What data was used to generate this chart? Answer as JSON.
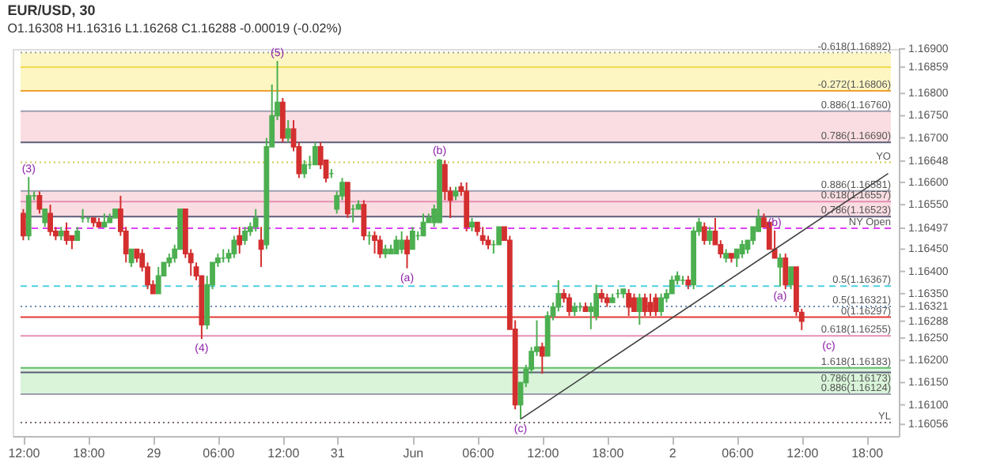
{
  "chart_data": {
    "type": "candlestick",
    "title": "EUR/USD, 30",
    "subtitle": "O1.16308 H1.16316 L1.16268 C1.16288 -0.00019 (-0.02%)",
    "categories": [
      "12:00",
      null,
      null,
      null,
      null,
      null,
      null,
      null,
      null,
      null,
      null,
      null,
      "18:00",
      null,
      null,
      null,
      null,
      null,
      null,
      null,
      null,
      null,
      null,
      null,
      "29",
      null,
      null,
      null,
      null,
      null,
      null,
      null,
      null,
      null,
      null,
      null,
      "06:00",
      null,
      null,
      null,
      null,
      null,
      null,
      null,
      null,
      null,
      null,
      null,
      "12:00",
      null,
      null,
      null,
      null,
      null,
      null,
      null,
      null,
      null,
      "31",
      null,
      null,
      null,
      null,
      null,
      null,
      null,
      null,
      null,
      null,
      null,
      null,
      null,
      "Jun",
      null,
      null,
      null,
      null,
      null,
      null,
      null,
      null,
      null,
      null,
      null,
      "06:00",
      null,
      null,
      null,
      null,
      null,
      null,
      null,
      null,
      null,
      null,
      null,
      "12:00",
      null,
      null,
      null,
      null,
      null,
      null,
      null,
      null,
      null,
      null,
      null,
      "18:00",
      null,
      null,
      null,
      null,
      null,
      null,
      null,
      null,
      null,
      null,
      null,
      "2",
      null,
      null,
      null,
      null,
      null,
      null,
      null,
      null,
      null,
      null,
      null,
      "06:00",
      null,
      null,
      null,
      null,
      null,
      null,
      null,
      null,
      null,
      null,
      null,
      "12:00",
      null,
      null,
      null,
      null,
      null,
      null,
      null,
      null,
      null,
      null,
      null,
      "18:00",
      null,
      null,
      null,
      null
    ],
    "colors": [
      "#d32f2f",
      "#4caf50",
      "#4caf50",
      "#d32f2f",
      "#4caf50",
      "#d32f2f",
      "#d32f2f",
      "#4caf50",
      "#d32f2f",
      "#d32f2f",
      "#4caf50",
      "#4caf50",
      "#4caf50",
      "#d32f2f",
      "#d32f2f",
      "#4caf50",
      "#4caf50",
      "#4caf50",
      "#d32f2f",
      "#d32f2f",
      "#4caf50",
      "#d32f2f",
      "#d32f2f",
      "#d32f2f",
      "#d32f2f",
      "#4caf50",
      "#4caf50",
      "#4caf50",
      "#4caf50",
      "#4caf50",
      "#d32f2f",
      "#d32f2f",
      "#d32f2f",
      "#d32f2f",
      "#4caf50",
      "#4caf50",
      "#4caf50",
      "#4caf50",
      "#4caf50",
      "#4caf50",
      "#d32f2f",
      "#4caf50",
      "#4caf50",
      "#4caf50",
      "#d32f2f",
      "#4caf50",
      "#4caf50",
      "#4caf50",
      "#d32f2f",
      "#4caf50",
      "#d32f2f",
      "#d32f2f",
      "#4caf50",
      "#4caf50",
      "#4caf50",
      "#d32f2f",
      "#d32f2f",
      "#4caf50",
      "#4caf50",
      "#4caf50",
      "#d32f2f",
      "#4caf50",
      "#4caf50",
      "#d32f2f",
      "#4caf50",
      "#d32f2f",
      "#d32f2f",
      "#4caf50",
      "#4caf50",
      "#4caf50",
      "#4caf50",
      "#d32f2f",
      "#4caf50",
      "#4caf50",
      "#4caf50",
      "#4caf50",
      "#4caf50",
      "#4caf50",
      "#d32f2f",
      "#d32f2f",
      "#4caf50",
      "#d32f2f",
      "#d32f2f",
      "#4caf50",
      "#d32f2f",
      "#d32f2f",
      "#d32f2f",
      "#4caf50",
      "#4caf50",
      "#d32f2f",
      "#d32f2f",
      "#d32f2f",
      "#4caf50",
      "#4caf50",
      "#4caf50",
      "#4caf50",
      "#d32f2f",
      "#4caf50",
      "#4caf50",
      "#4caf50",
      "#d32f2f",
      "#d32f2f",
      "#4caf50",
      "#4caf50",
      "#d32f2f",
      "#4caf50",
      "#4caf50",
      "#d32f2f",
      "#d32f2f",
      "#4caf50",
      "#4caf50",
      "#4caf50",
      "#d32f2f",
      "#d32f2f",
      "#4caf50",
      "#d32f2f",
      "#d32f2f",
      "#d32f2f",
      "#4caf50",
      "#4caf50",
      "#4caf50",
      "#4caf50",
      "#4caf50",
      "#d32f2f",
      "#4caf50",
      "#4caf50",
      "#d32f2f",
      "#4caf50",
      "#d32f2f",
      "#d32f2f",
      "#4caf50",
      "#d32f2f",
      "#4caf50",
      "#4caf50",
      "#4caf50",
      "#4caf50",
      "#4caf50",
      "#d32f2f",
      "#d32f2f",
      "#d32f2f",
      "#4caf50",
      "#d32f2f",
      "#4caf50",
      "#d32f2f",
      "#d32f2f",
      null,
      null,
      null,
      null,
      null,
      null,
      null,
      null,
      null,
      null,
      null,
      null,
      null,
      null,
      null,
      null
    ],
    "ohlc": [
      [
        1.1653,
        1.1654,
        1.1647,
        1.1648
      ],
      [
        1.1648,
        1.16612,
        1.1647,
        1.1657
      ],
      [
        1.1657,
        1.1658,
        1.1656,
        1.1657
      ],
      [
        1.1657,
        1.1658,
        1.1653,
        1.1654
      ],
      [
        1.1651,
        1.1654,
        1.165,
        1.1654
      ],
      [
        1.1653,
        1.1655,
        1.1648,
        1.1649
      ],
      [
        1.1649,
        1.165,
        1.1647,
        1.1648
      ],
      [
        1.1648,
        1.165,
        1.1647,
        1.1649
      ],
      [
        1.1649,
        1.1651,
        1.1646,
        1.1647
      ],
      [
        1.1648,
        1.1648,
        1.1645,
        1.1647
      ],
      [
        1.1647,
        1.165,
        1.1647,
        1.1649
      ],
      [
        1.1652,
        1.1654,
        1.1651,
        1.1652
      ],
      [
        1.1652,
        1.1652,
        1.1651,
        1.1652
      ],
      [
        1.1652,
        1.1652,
        1.165,
        1.1651
      ],
      [
        1.1651,
        1.1652,
        1.165,
        1.165
      ],
      [
        1.165,
        1.1653,
        1.165,
        1.1651
      ],
      [
        1.1651,
        1.1653,
        1.1651,
        1.1652
      ],
      [
        1.1652,
        1.1654,
        1.1652,
        1.1654
      ],
      [
        1.1654,
        1.1657,
        1.1648,
        1.1649
      ],
      [
        1.1649,
        1.165,
        1.1642,
        1.1644
      ],
      [
        1.1642,
        1.1645,
        1.1641,
        1.1645
      ],
      [
        1.1645,
        1.1645,
        1.1642,
        1.1643
      ],
      [
        1.1644,
        1.1645,
        1.164,
        1.1641
      ],
      [
        1.1641,
        1.1642,
        1.1636,
        1.1637
      ],
      [
        1.1637,
        1.1638,
        1.1635,
        1.1635
      ],
      [
        1.1635,
        1.1641,
        1.1635,
        1.1639
      ],
      [
        1.1639,
        1.1642,
        1.1639,
        1.1642
      ],
      [
        1.1642,
        1.1644,
        1.1641,
        1.1643
      ],
      [
        1.1643,
        1.1646,
        1.1642,
        1.1645
      ],
      [
        1.1645,
        1.1654,
        1.1645,
        1.1654
      ],
      [
        1.1654,
        1.1654,
        1.1643,
        1.1644
      ],
      [
        1.1644,
        1.1645,
        1.1639,
        1.1642
      ],
      [
        1.1641,
        1.1642,
        1.1638,
        1.1639
      ],
      [
        1.1639,
        1.1639,
        1.16248,
        1.1628
      ],
      [
        1.1628,
        1.1639,
        1.1627,
        1.1637
      ],
      [
        1.1637,
        1.1642,
        1.1636,
        1.1642
      ],
      [
        1.1642,
        1.1644,
        1.1641,
        1.1643
      ],
      [
        1.1643,
        1.1645,
        1.1642,
        1.1643
      ],
      [
        1.1643,
        1.1645,
        1.1642,
        1.1644
      ],
      [
        1.1644,
        1.1648,
        1.1643,
        1.1647
      ],
      [
        1.1648,
        1.165,
        1.1644,
        1.1646
      ],
      [
        1.1647,
        1.165,
        1.1646,
        1.1649
      ],
      [
        1.1649,
        1.1651,
        1.1648,
        1.165
      ],
      [
        1.165,
        1.1654,
        1.1649,
        1.1652
      ],
      [
        1.1647,
        1.165,
        1.1641,
        1.1645
      ],
      [
        1.1646,
        1.167,
        1.1645,
        1.1668
      ],
      [
        1.1668,
        1.1682,
        1.1668,
        1.1675
      ],
      [
        1.1675,
        1.16873,
        1.1674,
        1.1678
      ],
      [
        1.1678,
        1.1679,
        1.1669,
        1.167
      ],
      [
        1.167,
        1.1674,
        1.1669,
        1.1672
      ],
      [
        1.1672,
        1.1674,
        1.1667,
        1.1668
      ],
      [
        1.1668,
        1.1669,
        1.1661,
        1.1662
      ],
      [
        1.1662,
        1.1665,
        1.1661,
        1.1664
      ],
      [
        1.1664,
        1.1666,
        1.1663,
        1.1664
      ],
      [
        1.1664,
        1.1669,
        1.1664,
        1.1668
      ],
      [
        1.1668,
        1.1669,
        1.1663,
        1.1664
      ],
      [
        1.1665,
        1.1665,
        1.166,
        1.1661
      ],
      [
        1.1662,
        1.1663,
        1.1661,
        1.1662
      ],
      [
        1.1654,
        1.1658,
        1.1653,
        1.1657
      ],
      [
        1.1657,
        1.1661,
        1.1656,
        1.166
      ],
      [
        1.166,
        1.166,
        1.1652,
        1.1653
      ],
      [
        1.1654,
        1.1655,
        1.1651,
        1.1654
      ],
      [
        1.1654,
        1.1656,
        1.1654,
        1.1655
      ],
      [
        1.1655,
        1.1656,
        1.1647,
        1.1648
      ],
      [
        1.1648,
        1.1649,
        1.1646,
        1.1648
      ],
      [
        1.1648,
        1.1649,
        1.1644,
        1.1647
      ],
      [
        1.1647,
        1.1648,
        1.1643,
        1.1644
      ],
      [
        1.1644,
        1.1646,
        1.1643,
        1.1645
      ],
      [
        1.1644,
        1.1646,
        1.1644,
        1.1645
      ],
      [
        1.1644,
        1.1648,
        1.1644,
        1.1647
      ],
      [
        1.1645,
        1.1649,
        1.1644,
        1.1647
      ],
      [
        1.1647,
        1.1648,
        1.16407,
        1.1644
      ],
      [
        1.1645,
        1.165,
        1.1645,
        1.1649
      ],
      [
        1.1648,
        1.1649,
        1.1647,
        1.1648
      ],
      [
        1.1648,
        1.1653,
        1.1648,
        1.1651
      ],
      [
        1.1651,
        1.1653,
        1.1651,
        1.1652
      ],
      [
        1.1651,
        1.1655,
        1.165,
        1.1654
      ],
      [
        1.1651,
        1.16653,
        1.1651,
        1.1665
      ],
      [
        1.1664,
        1.1665,
        1.1656,
        1.1658
      ],
      [
        1.1658,
        1.1659,
        1.1652,
        1.1656
      ],
      [
        1.1657,
        1.1659,
        1.1656,
        1.1658
      ],
      [
        1.1659,
        1.166,
        1.1657,
        1.1658
      ],
      [
        1.1658,
        1.166,
        1.1649,
        1.165
      ],
      [
        1.165,
        1.1652,
        1.1649,
        1.1651
      ],
      [
        1.1651,
        1.1651,
        1.1648,
        1.1649
      ],
      [
        1.1648,
        1.165,
        1.1646,
        1.1647
      ],
      [
        1.1647,
        1.1648,
        1.1645,
        1.1646
      ],
      [
        1.1646,
        1.1647,
        1.1644,
        1.1646
      ],
      [
        1.1646,
        1.165,
        1.1646,
        1.165
      ],
      [
        1.165,
        1.165,
        1.1647,
        1.1647
      ],
      [
        1.1647,
        1.1648,
        1.1627,
        1.1627
      ],
      [
        1.1627,
        1.1629,
        1.1609,
        1.161
      ],
      [
        1.161,
        1.1615,
        1.16068,
        1.1615
      ],
      [
        1.1615,
        1.1619,
        1.1614,
        1.1618
      ],
      [
        1.1618,
        1.1623,
        1.1617,
        1.1622
      ],
      [
        1.1622,
        1.1629,
        1.1621,
        1.1623
      ],
      [
        1.1623,
        1.1624,
        1.1617,
        1.1621
      ],
      [
        1.1621,
        1.1631,
        1.1621,
        1.163
      ],
      [
        1.163,
        1.1633,
        1.1629,
        1.1632
      ],
      [
        1.1632,
        1.1638,
        1.1631,
        1.1635
      ],
      [
        1.1635,
        1.1636,
        1.1633,
        1.1634
      ],
      [
        1.1634,
        1.1635,
        1.163,
        1.1631
      ],
      [
        1.1631,
        1.1633,
        1.163,
        1.1632
      ],
      [
        1.1632,
        1.1633,
        1.1631,
        1.1632
      ],
      [
        1.1632,
        1.1633,
        1.1631,
        1.1631
      ],
      [
        1.1631,
        1.1633,
        1.1627,
        1.1632
      ],
      [
        1.163,
        1.1637,
        1.1629,
        1.1635
      ],
      [
        1.1635,
        1.1636,
        1.1633,
        1.1634
      ],
      [
        1.1634,
        1.1635,
        1.1632,
        1.1633
      ],
      [
        1.1633,
        1.1635,
        1.1633,
        1.1634
      ],
      [
        1.1635,
        1.1636,
        1.1634,
        1.1635
      ],
      [
        1.1635,
        1.1636,
        1.1634,
        1.1636
      ],
      [
        1.1635,
        1.1636,
        1.163,
        1.1632
      ],
      [
        1.1634,
        1.1635,
        1.1631,
        1.1631
      ],
      [
        1.1631,
        1.1635,
        1.1628,
        1.1634
      ],
      [
        1.1634,
        1.1635,
        1.163,
        1.1631
      ],
      [
        1.1633,
        1.1635,
        1.163,
        1.1631
      ],
      [
        1.1634,
        1.1635,
        1.163,
        1.1631
      ],
      [
        1.1631,
        1.1635,
        1.163,
        1.1634
      ],
      [
        1.1634,
        1.1636,
        1.1633,
        1.1635
      ],
      [
        1.1635,
        1.1639,
        1.1635,
        1.1638
      ],
      [
        1.1638,
        1.164,
        1.1637,
        1.1639
      ],
      [
        1.1638,
        1.1639,
        1.1637,
        1.1638
      ],
      [
        1.1638,
        1.1639,
        1.1636,
        1.1637
      ],
      [
        1.1637,
        1.165,
        1.1636,
        1.1649
      ],
      [
        1.1649,
        1.1652,
        1.1648,
        1.1651
      ],
      [
        1.165,
        1.1651,
        1.1646,
        1.1647
      ],
      [
        1.1647,
        1.165,
        1.1646,
        1.1649
      ],
      [
        1.1649,
        1.1652,
        1.1646,
        1.1646
      ],
      [
        1.1646,
        1.1647,
        1.1643,
        1.1644
      ],
      [
        1.1643,
        1.1645,
        1.1642,
        1.1644
      ],
      [
        1.1644,
        1.1644,
        1.1642,
        1.1643
      ],
      [
        1.1643,
        1.1645,
        1.1641,
        1.1645
      ],
      [
        1.1644,
        1.1647,
        1.1643,
        1.1646
      ],
      [
        1.1645,
        1.1647,
        1.1644,
        1.1647
      ],
      [
        1.1647,
        1.165,
        1.1646,
        1.165
      ],
      [
        1.1649,
        1.1654,
        1.1649,
        1.1652
      ],
      [
        1.1652,
        1.1653,
        1.165,
        1.165
      ],
      [
        1.1651,
        1.1651,
        1.1645,
        1.1645
      ],
      [
        1.1645,
        1.16492,
        1.1643,
        1.1643
      ],
      [
        1.1641,
        1.1644,
        1.16366,
        1.1643
      ],
      [
        1.1643,
        1.1644,
        1.1636,
        1.1637
      ],
      [
        1.1637,
        1.1641,
        1.1636,
        1.1641
      ],
      [
        1.1641,
        1.1641,
        1.163,
        1.1631
      ],
      [
        1.16308,
        1.16316,
        1.16268,
        1.16288
      ],
      null,
      null,
      null,
      null,
      null,
      null,
      null,
      null,
      null,
      null,
      null,
      null,
      null,
      null,
      null,
      null
    ],
    "series": [
      {
        "type": "line",
        "color": "#444444",
        "values": [
          null,
          null,
          null,
          null,
          null,
          null,
          null,
          null,
          null,
          null,
          null,
          null,
          null,
          null,
          null,
          null,
          null,
          null,
          null,
          null,
          null,
          null,
          null,
          null,
          null,
          null,
          null,
          null,
          null,
          null,
          null,
          null,
          null,
          null,
          null,
          null,
          null,
          null,
          null,
          null,
          null,
          null,
          null,
          null,
          null,
          null,
          null,
          null,
          null,
          null,
          null,
          null,
          null,
          null,
          null,
          null,
          null,
          null,
          null,
          null,
          null,
          null,
          null,
          null,
          null,
          null,
          null,
          null,
          null,
          null,
          null,
          null,
          null,
          null,
          null,
          null,
          null,
          null,
          null,
          null,
          null,
          null,
          null,
          null,
          null,
          null,
          null,
          null,
          null,
          null,
          null,
          null,
          1.16068,
          null,
          null,
          null,
          null,
          null,
          null,
          null,
          null,
          null,
          null,
          null,
          null,
          null,
          null,
          null,
          null,
          null,
          null,
          null,
          null,
          null,
          null,
          null,
          null,
          null,
          null,
          null,
          null,
          null,
          null,
          null,
          null,
          null,
          null,
          null,
          null,
          null,
          null,
          null,
          null,
          null,
          null,
          null,
          null,
          null,
          null,
          null,
          null,
          null,
          null,
          null,
          null,
          null,
          null,
          null,
          null,
          null,
          null,
          null,
          null,
          null,
          null,
          null,
          null,
          null,
          null,
          null,
          1.1662
        ]
      }
    ],
    "ylim": [
      1.1603,
      1.169
    ],
    "yticks": [
      1.16056,
      {
        "value": 1.161,
        "label": "1.16100"
      },
      {
        "value": 1.1615,
        "label": "1.16150"
      },
      {
        "value": 1.162,
        "label": "1.16200"
      },
      {
        "value": 1.1625,
        "label": "1.16250"
      },
      1.16288,
      1.16321,
      {
        "value": 1.1635,
        "label": "1.16350"
      },
      {
        "value": 1.164,
        "label": "1.16400"
      },
      {
        "value": 1.1645,
        "label": "1.16450"
      },
      1.16497,
      {
        "value": 1.1655,
        "label": "1.16550"
      },
      {
        "value": 1.166,
        "label": "1.16600"
      },
      1.16648,
      {
        "value": 1.167,
        "label": "1.16700"
      },
      {
        "value": 1.1675,
        "label": "1.16750"
      },
      {
        "value": 1.168,
        "label": "1.16800"
      },
      1.16859,
      {
        "value": 1.169,
        "label": "1.16900"
      }
    ],
    "bands": [
      {
        "axis": "y",
        "from": 1.16806,
        "to": 1.16892,
        "color": "#fdf6c3"
      },
      {
        "axis": "y",
        "from": 1.1669,
        "to": 1.1676,
        "color": "#fadde2"
      },
      {
        "axis": "y",
        "from": 1.16523,
        "to": 1.16581,
        "color": "#fadde2"
      },
      {
        "axis": "y",
        "from": 1.16124,
        "to": 1.16183,
        "color": "#d9f4d9"
      }
    ],
    "ref_lines": [
      {
        "axis": "y",
        "value": 1.16892,
        "label": "-0.618(1.16892)",
        "color": "#9e9e9e",
        "line_style": "dotted"
      },
      {
        "axis": "y",
        "value": 1.16859,
        "color": "#f2d94e"
      },
      {
        "axis": "y",
        "value": 1.16806,
        "label": "-0.272(1.16806)",
        "color": "#f0a030"
      },
      {
        "axis": "y",
        "value": 1.1676,
        "label": "0.886(1.16760)",
        "color": "#9e9eb0"
      },
      {
        "axis": "y",
        "value": 1.1669,
        "label": "0.786(1.16690)",
        "color": "#5c5c7a"
      },
      {
        "axis": "y",
        "value": 1.16645,
        "label": "YO",
        "color": "#d4c84a",
        "line_style": "dotted"
      },
      {
        "axis": "y",
        "value": 1.16581,
        "label": "0.886(1.16581)",
        "color": "#9e9eb0"
      },
      {
        "axis": "y",
        "value": 1.16557,
        "label": "0.618(1.16557)",
        "color": "#e58fb5"
      },
      {
        "axis": "y",
        "value": 1.16523,
        "label": "0.786(1.16523)",
        "color": "#5c5c7a"
      },
      {
        "axis": "y",
        "value": 1.16497,
        "label": "NY Open",
        "color": "#e040fb",
        "line_style": "dashed"
      },
      {
        "axis": "y",
        "value": 1.16367,
        "label": "0.5(1.16367)",
        "color": "#4dd0e1",
        "line_style": "dashed"
      },
      {
        "axis": "y",
        "value": 1.16321,
        "label": "0.5(1.16321)",
        "color": "#6a8caf",
        "line_style": "dotted"
      },
      {
        "axis": "y",
        "value": 1.16297,
        "label": "0(1.16297)",
        "color": "#e53935"
      },
      {
        "axis": "y",
        "value": 1.16255,
        "label": "0.618(1.16255)",
        "color": "#e58fb5"
      },
      {
        "axis": "y",
        "value": 1.16183,
        "label": "1.618(1.16183)",
        "color": "#66bb6a"
      },
      {
        "axis": "y",
        "value": 1.16173,
        "label": "0.786(1.16173)",
        "color": "#5c5c7a"
      },
      {
        "axis": "y",
        "value": 1.16124,
        "label": "0.886(1.16124)",
        "color": "#9e9eb0"
      },
      {
        "axis": "y",
        "value": 1.1606,
        "label": "YL",
        "color": "#7a6a6a",
        "line_style": "dotted"
      }
    ],
    "annotations": [
      {
        "text": "(3)",
        "y": 1.16612
      },
      {
        "text": "(4)",
        "y": 1.16248
      },
      {
        "text": "(5)",
        "y": 1.16873
      },
      {
        "text": "(a)",
        "y": 1.16407
      },
      {
        "text": "(b)",
        "y": 1.16653
      },
      {
        "text": "(c)",
        "y": 1.16068
      },
      {
        "text": "(b)",
        "y": 1.16492
      },
      {
        "text": "(a)",
        "y": 1.16366
      },
      {
        "text": "(c)",
        "y": 1.162
      }
    ]
  }
}
